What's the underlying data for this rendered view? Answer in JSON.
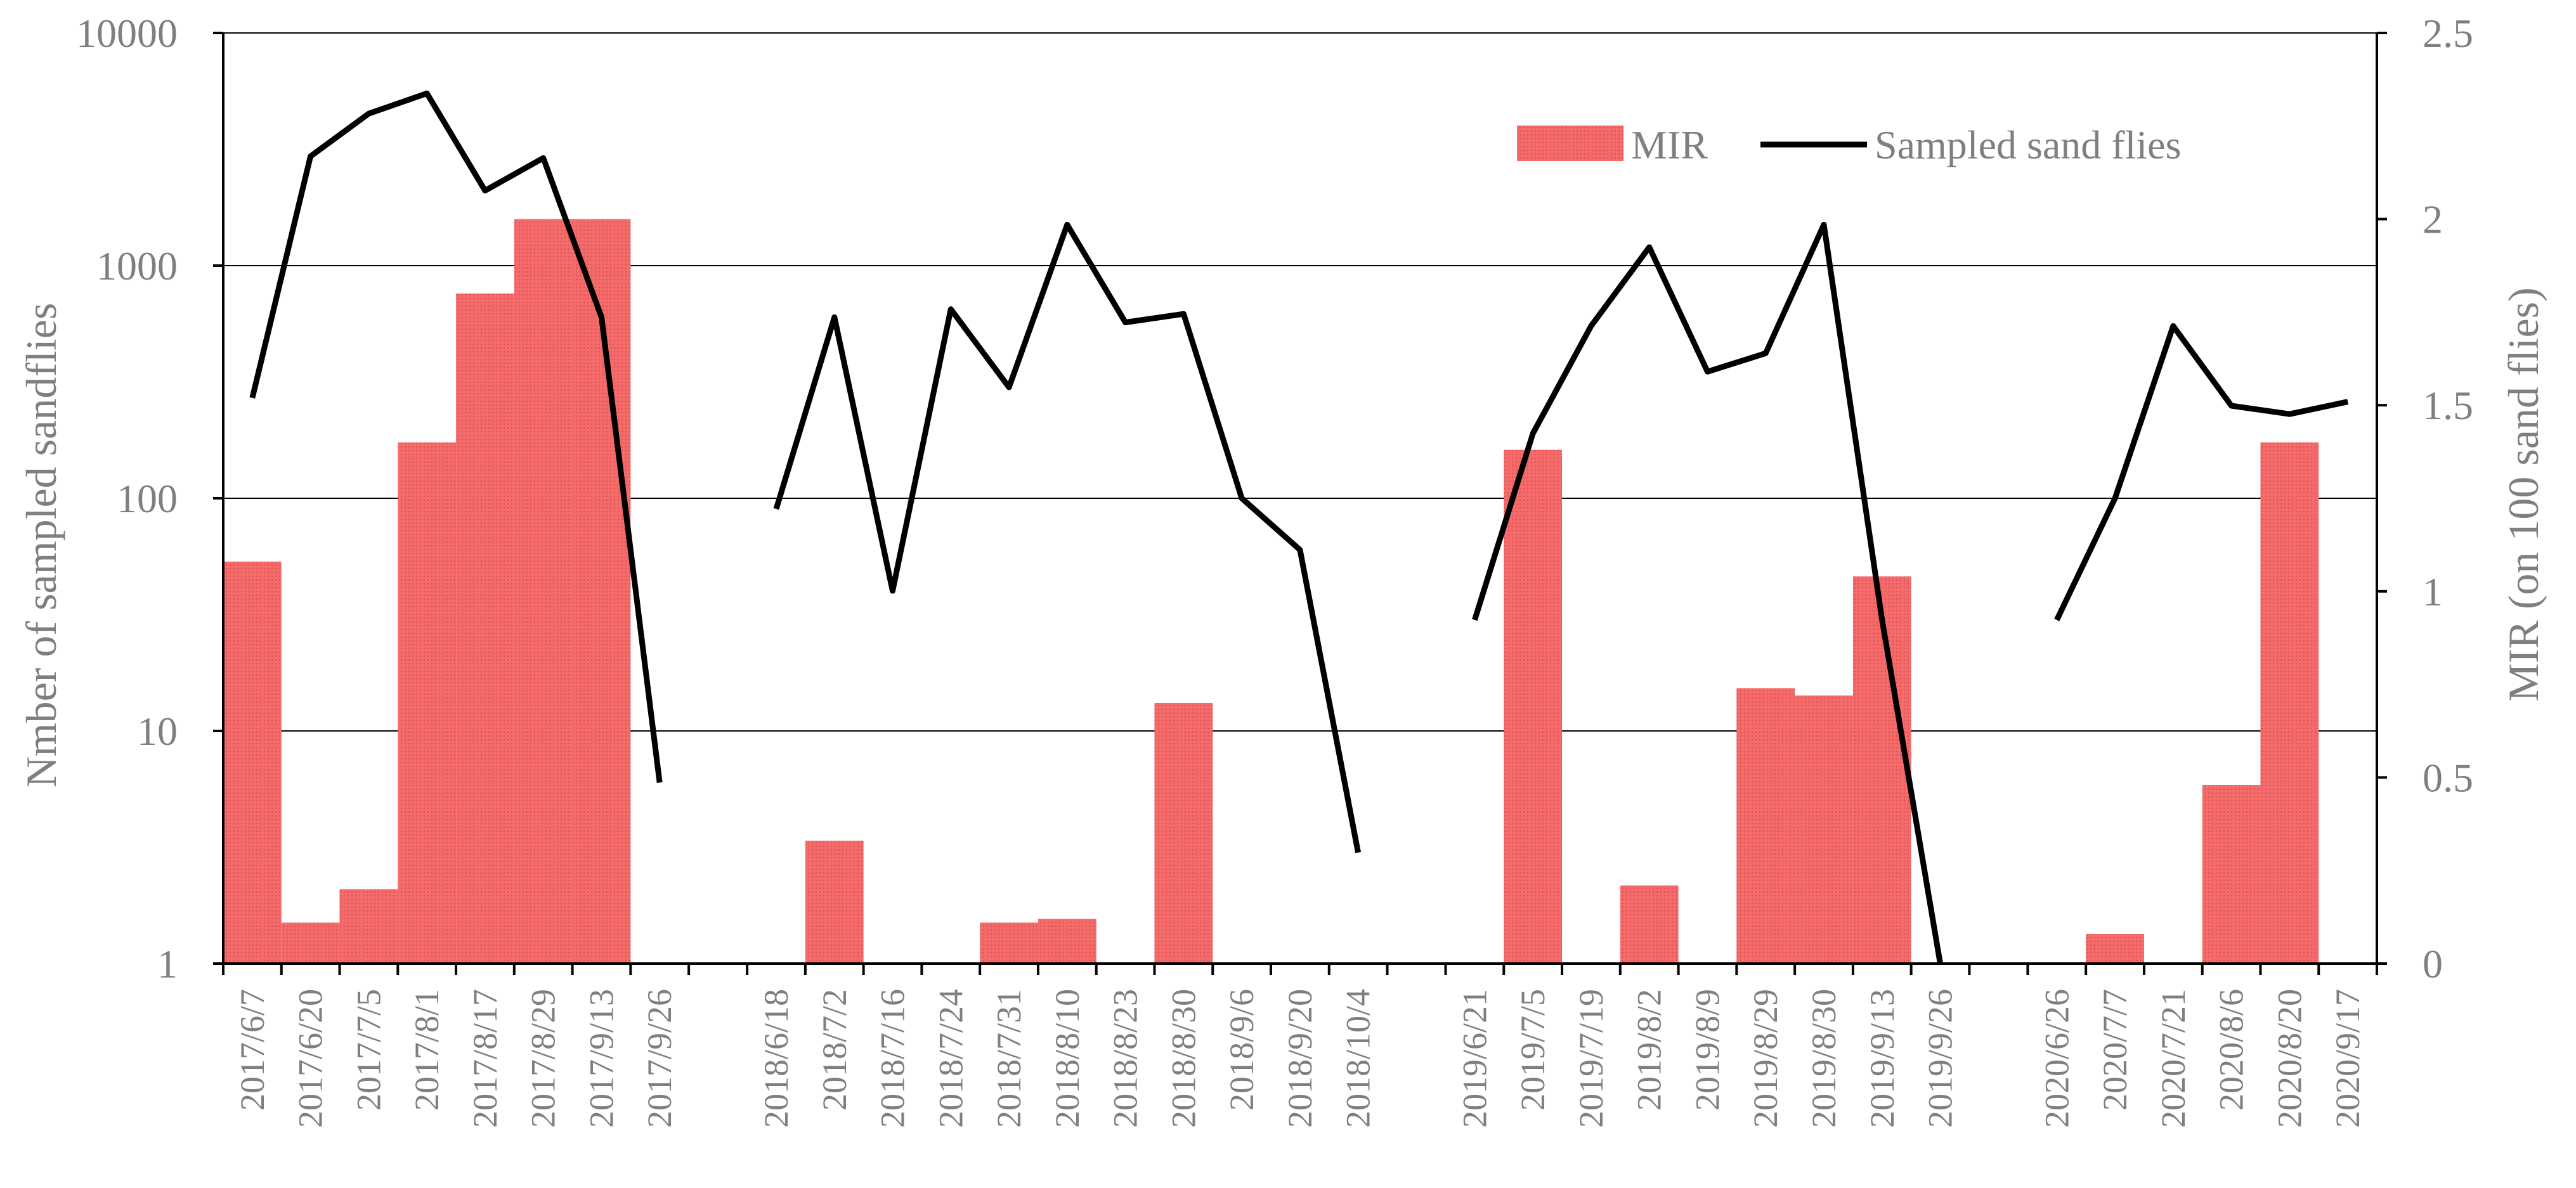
{
  "chart_data": {
    "type": "bar+line",
    "categories": [
      "2017/6/7",
      "2017/6/20",
      "2017/7/5",
      "2017/8/1",
      "2017/8/17",
      "2017/8/29",
      "2017/9/13",
      "2017/9/26",
      "2018/6/18",
      "2018/7/2",
      "2018/7/16",
      "2018/7/24",
      "2018/7/31",
      "2018/8/10",
      "2018/8/23",
      "2018/8/30",
      "2018/9/6",
      "2018/9/20",
      "2018/10/4",
      "2019/6/21",
      "2019/7/5",
      "2019/7/19",
      "2019/8/2",
      "2019/8/9",
      "2019/8/29",
      "2019/8/30",
      "2019/9/13",
      "2019/9/26",
      "2020/6/26",
      "2020/7/7",
      "2020/7/21",
      "2020/8/6",
      "2020/8/20",
      "2020/9/17"
    ],
    "groups": [
      {
        "start": 0,
        "count": 8
      },
      {
        "start": 8,
        "count": 11
      },
      {
        "start": 19,
        "count": 9
      },
      {
        "start": 28,
        "count": 6
      }
    ],
    "y_left": {
      "label": "Nmber of sampled sandflies",
      "scale": "log",
      "range": [
        1,
        10000
      ],
      "ticks": [
        "1",
        "10",
        "100",
        "1000",
        "10000"
      ]
    },
    "y_right": {
      "label": "MIR (on 100 sand flies)",
      "scale": "linear",
      "range": [
        0,
        2.5
      ],
      "ticks": [
        "0",
        "0.5",
        "1",
        "1.5",
        "2",
        "2.5"
      ]
    },
    "grid": "horizontal at left-axis decades",
    "legend_position": "top-right",
    "series": [
      {
        "name": "MIR",
        "type": "bar",
        "axis": "right",
        "color": "#f46b6b",
        "values": [
          1.08,
          0.11,
          0.2,
          1.4,
          1.8,
          2.0,
          2.0,
          0,
          0,
          0.33,
          0,
          0,
          0.11,
          0.12,
          0,
          0.7,
          0,
          0,
          0,
          0,
          1.38,
          0,
          0.21,
          0,
          0.74,
          0.72,
          1.04,
          0,
          0,
          0.08,
          0,
          0.48,
          1.4,
          0
        ]
      },
      {
        "name": "Sampled sand flies",
        "type": "line",
        "axis": "left",
        "color": "#000000",
        "values": [
          270,
          2950,
          4500,
          5500,
          2100,
          2900,
          600,
          6,
          90,
          600,
          40,
          650,
          300,
          1500,
          570,
          620,
          100,
          60,
          3,
          30,
          190,
          550,
          1200,
          350,
          420,
          1500,
          30,
          1,
          30,
          100,
          550,
          250,
          230,
          260
        ]
      }
    ]
  }
}
